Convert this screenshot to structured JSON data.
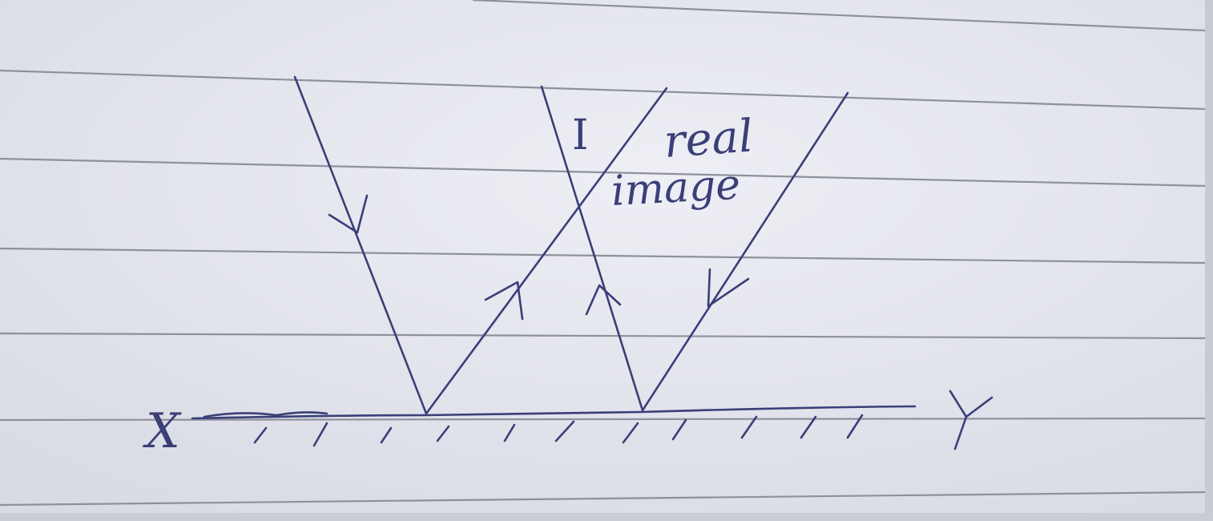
{
  "diagram": {
    "labels": {
      "left_end": "X",
      "right_end": "Y",
      "image_point": "I",
      "annotation_line1": "real",
      "annotation_line2": "image"
    },
    "colors": {
      "paper": "#e6e7ef",
      "paper_shade": "#d4d6e0",
      "ruled_line": "#8e909c",
      "ink": "#3a3f78"
    }
  }
}
